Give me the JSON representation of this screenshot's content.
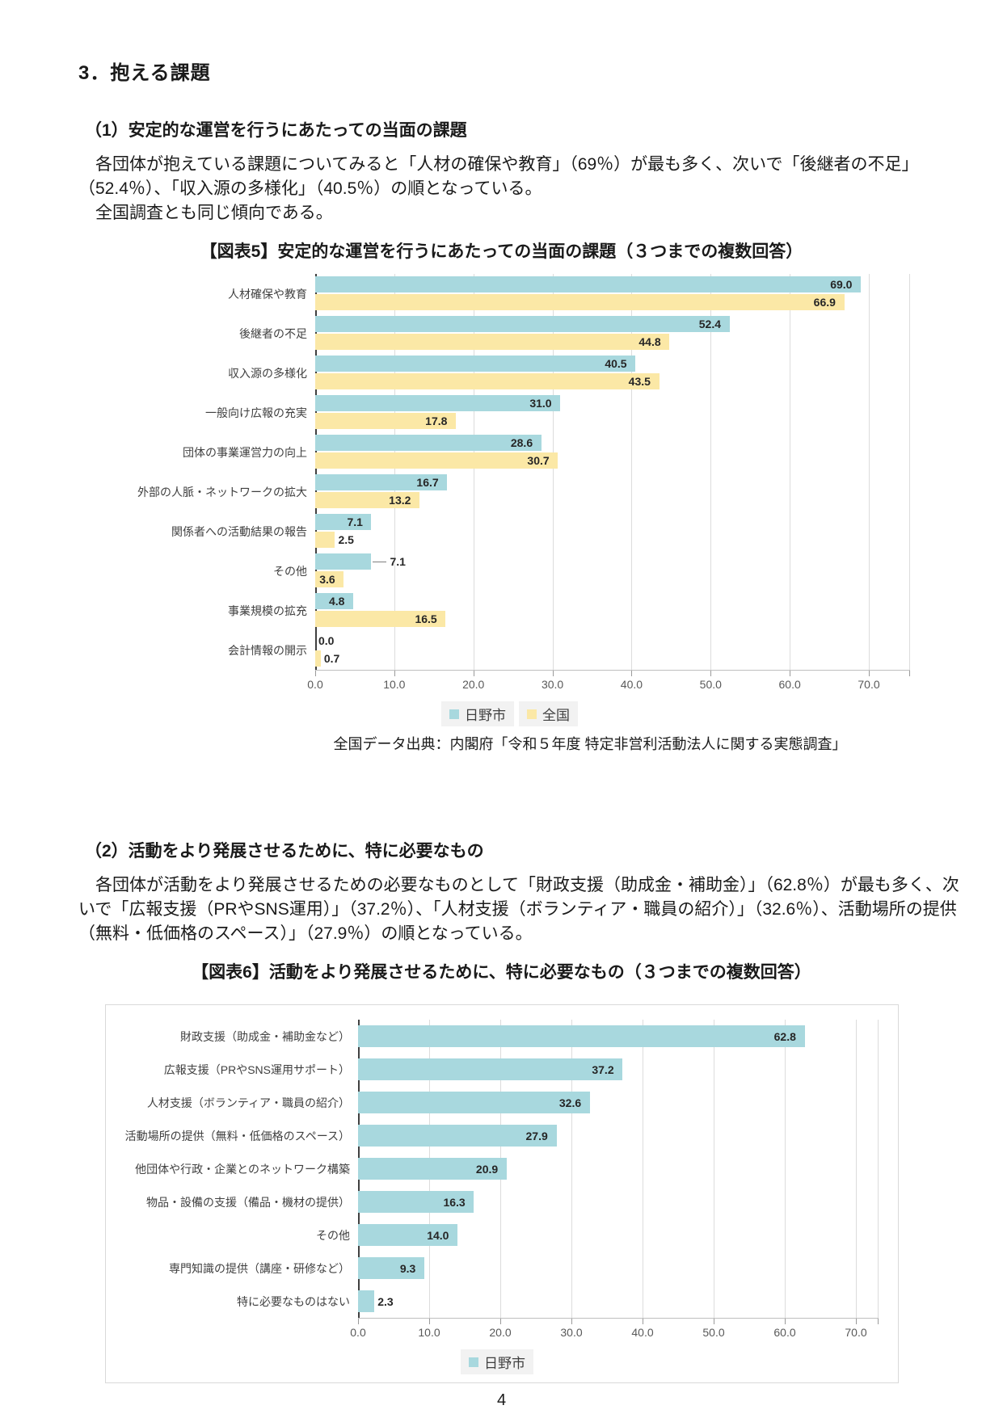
{
  "document": {
    "heading": "3．抱える課題",
    "section1": {
      "heading": "（1）安定的な運営を行うにあたっての当面の課題",
      "paragraphs": [
        "各団体が抱えている課題についてみると「人材の確保や教育」（69％）が最も多く、次いで「後継者の不足」（52.4％）、「収入源の多様化」（40.5％）の順となっている。",
        "全国調査とも同じ傾向である。"
      ]
    },
    "figure5_source": "全国データ出典：内閣府「令和５年度 特定非営利活動法人に関する実態調査」",
    "section2": {
      "heading": "（2）活動をより発展させるために、特に必要なもの",
      "paragraphs": [
        "各団体が活動をより発展させるための必要なものとして「財政支援（助成金・補助金）」（62.8％）が最も多く、次いで「広報支援（PRやSNS運用）」（37.2％）、「人材支援（ボランティア・職員の紹介）」（32.6％）、活動場所の提供（無料・低価格のスペース）」（27.9％）の順となっている。"
      ]
    },
    "page_number": "4"
  },
  "colors": {
    "hino_teal": "#a8d8de",
    "national_yellow": "#fbe8a6",
    "axis_dark": "#404040",
    "gridline_gray": "#dcdcdc"
  },
  "chart_data": [
    {
      "id": "figure5",
      "type": "bar",
      "orientation": "horizontal",
      "title": "【図表5】安定的な運営を行うにあたっての当面の課題（３つまでの複数回答）",
      "categories": [
        "人材確保や教育",
        "後継者の不足",
        "収入源の多様化",
        "一般向け広報の充実",
        "団体の事業運営力の向上",
        "外部の人脈・ネットワークの拡大",
        "関係者への活動結果の報告",
        "その他",
        "事業規模の拡充",
        "会計情報の開示"
      ],
      "series": [
        {
          "key": "hino",
          "name": "日野市",
          "color": "#a8d8de",
          "values": [
            69.0,
            52.4,
            40.5,
            31.0,
            28.6,
            16.7,
            7.1,
            7.1,
            4.8,
            0.0
          ]
        },
        {
          "key": "national",
          "name": "全国",
          "color": "#fbe8a6",
          "values": [
            66.9,
            44.8,
            43.5,
            17.8,
            30.7,
            13.2,
            2.5,
            3.6,
            16.5,
            0.7
          ]
        }
      ],
      "xlim": [
        0,
        70
      ],
      "tick_labels": [
        "0.0",
        "10.0",
        "20.0",
        "30.0",
        "40.0",
        "50.0",
        "60.0",
        "70.0"
      ],
      "value_labels": true,
      "callout_labels": [
        {
          "category_index": 7,
          "series_index": 0
        }
      ],
      "grid": true,
      "legend_position": "bottom"
    },
    {
      "id": "figure6",
      "type": "bar",
      "orientation": "horizontal",
      "title": "【図表6】活動をより発展させるために、特に必要なもの（３つまでの複数回答）",
      "categories": [
        "財政支援（助成金・補助金など）",
        "広報支援（PRやSNS運用サポート）",
        "人材支援（ボランティア・職員の紹介）",
        "活動場所の提供（無料・低価格のスペース）",
        "他団体や行政・企業とのネットワーク構築",
        "物品・設備の支援（備品・機材の提供）",
        "その他",
        "専門知識の提供（講座・研修など）",
        "特に必要なものはない"
      ],
      "series": [
        {
          "key": "hino",
          "name": "日野市",
          "color": "#a8d8de",
          "values": [
            62.8,
            37.2,
            32.6,
            27.9,
            20.9,
            16.3,
            14.0,
            9.3,
            2.3
          ]
        }
      ],
      "xlim": [
        0,
        70
      ],
      "tick_labels": [
        "0.0",
        "10.0",
        "20.0",
        "30.0",
        "40.0",
        "50.0",
        "60.0",
        "70.0"
      ],
      "value_labels": true,
      "callout_labels": [],
      "grid": true,
      "legend_position": "bottom"
    }
  ]
}
